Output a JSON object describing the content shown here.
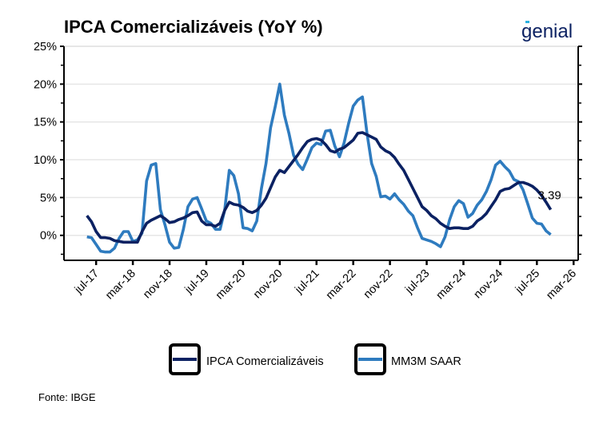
{
  "chart_data": {
    "type": "line",
    "title": "IPCA Comercializáveis (YoY %)",
    "source": "Fonte: IBGE",
    "logo_text": "genial",
    "ylim": [
      -3.3,
      25
    ],
    "xlim": [
      "2016-12",
      "2026-04"
    ],
    "grid": "horizontal",
    "legend_placement": "bottom",
    "yticks": [
      0,
      5,
      10,
      15,
      20,
      25
    ],
    "ytick_labels": [
      "0%",
      "5%",
      "10%",
      "15%",
      "20%",
      "25%"
    ],
    "xticks": [
      "2017-07",
      "2018-03",
      "2018-11",
      "2019-07",
      "2020-03",
      "2020-11",
      "2021-07",
      "2022-03",
      "2022-11",
      "2023-07",
      "2024-03",
      "2024-11",
      "2025-07",
      "2026-03"
    ],
    "xtick_labels": [
      "jul-17",
      "mar-18",
      "nov-18",
      "jul-19",
      "mar-20",
      "nov-20",
      "jul-21",
      "mar-22",
      "nov-22",
      "jul-23",
      "mar-24",
      "nov-24",
      "jul-25",
      "mar-26"
    ],
    "x": [
      "2017-05",
      "2017-06",
      "2017-07",
      "2017-08",
      "2017-09",
      "2017-10",
      "2017-11",
      "2017-12",
      "2018-01",
      "2018-02",
      "2018-03",
      "2018-04",
      "2018-05",
      "2018-06",
      "2018-07",
      "2018-08",
      "2018-09",
      "2018-10",
      "2018-11",
      "2018-12",
      "2019-01",
      "2019-02",
      "2019-03",
      "2019-04",
      "2019-05",
      "2019-06",
      "2019-07",
      "2019-08",
      "2019-09",
      "2019-10",
      "2019-11",
      "2019-12",
      "2020-01",
      "2020-02",
      "2020-03",
      "2020-04",
      "2020-05",
      "2020-06",
      "2020-07",
      "2020-08",
      "2020-09",
      "2020-10",
      "2020-11",
      "2020-12",
      "2021-01",
      "2021-02",
      "2021-03",
      "2021-04",
      "2021-05",
      "2021-06",
      "2021-07",
      "2021-08",
      "2021-09",
      "2021-10",
      "2021-11",
      "2021-12",
      "2022-01",
      "2022-02",
      "2022-03",
      "2022-04",
      "2022-05",
      "2022-06",
      "2022-07",
      "2022-08",
      "2022-09",
      "2022-10",
      "2022-11",
      "2022-12",
      "2023-01",
      "2023-02",
      "2023-03",
      "2023-04",
      "2023-05",
      "2023-06",
      "2023-07",
      "2023-08",
      "2023-09",
      "2023-10",
      "2023-11",
      "2023-12",
      "2024-01",
      "2024-02",
      "2024-03",
      "2024-04",
      "2024-05",
      "2024-06",
      "2024-07",
      "2024-08",
      "2024-09",
      "2024-10",
      "2024-11",
      "2024-12",
      "2025-01",
      "2025-02",
      "2025-03",
      "2025-04",
      "2025-05",
      "2025-06",
      "2025-07",
      "2025-08",
      "2025-09",
      "2025-10"
    ],
    "series": [
      {
        "name": "IPCA Comercializáveis",
        "color": "#0b2162",
        "values": [
          2.6,
          1.8,
          0.5,
          -0.3,
          -0.3,
          -0.4,
          -0.7,
          -0.8,
          -0.9,
          -0.9,
          -0.9,
          -0.9,
          0.5,
          1.6,
          2.0,
          2.3,
          2.6,
          2.2,
          1.7,
          1.8,
          2.1,
          2.3,
          2.6,
          3.0,
          3.1,
          1.9,
          1.4,
          1.4,
          1.2,
          1.6,
          3.3,
          4.4,
          4.1,
          4.0,
          3.7,
          3.2,
          3.0,
          3.3,
          4.0,
          4.9,
          6.3,
          7.7,
          8.6,
          8.3,
          9.1,
          9.9,
          10.7,
          11.6,
          12.4,
          12.7,
          12.8,
          12.6,
          12.0,
          11.2,
          11.0,
          11.4,
          11.6,
          12.1,
          12.6,
          13.5,
          13.6,
          13.3,
          13.0,
          12.7,
          11.7,
          11.2,
          10.9,
          10.3,
          9.4,
          8.6,
          7.4,
          6.2,
          5.0,
          3.8,
          3.3,
          2.6,
          2.2,
          1.6,
          1.2,
          0.9,
          1.0,
          1.0,
          0.9,
          0.9,
          1.2,
          1.9,
          2.3,
          2.9,
          3.8,
          4.7,
          5.8,
          6.1,
          6.2,
          6.6,
          7.0,
          7.0,
          6.8,
          6.5,
          6.0,
          5.3,
          4.4,
          3.39
        ]
      },
      {
        "name": "MM3M SAAR",
        "color": "#2e7bbf",
        "values": [
          -0.2,
          -0.3,
          -1.2,
          -2.1,
          -2.2,
          -2.2,
          -1.7,
          -0.4,
          0.5,
          0.5,
          -0.8,
          -0.6,
          0.3,
          7.2,
          9.3,
          9.5,
          3.4,
          1.4,
          -0.9,
          -1.7,
          -1.6,
          0.8,
          3.8,
          4.8,
          5.0,
          3.5,
          1.9,
          1.6,
          0.8,
          0.8,
          3.3,
          8.6,
          7.9,
          5.5,
          1.0,
          0.9,
          0.6,
          1.9,
          6.2,
          9.5,
          14.2,
          17.0,
          20.0,
          15.9,
          13.5,
          10.6,
          9.4,
          8.7,
          10.1,
          11.6,
          12.2,
          12.0,
          13.8,
          13.9,
          11.8,
          10.4,
          12.2,
          14.8,
          17.1,
          17.9,
          18.3,
          13.5,
          9.5,
          7.8,
          5.1,
          5.2,
          4.8,
          5.5,
          4.7,
          4.1,
          3.2,
          2.6,
          1.0,
          -0.4,
          -0.6,
          -0.8,
          -1.1,
          -1.5,
          -0.2,
          2.1,
          3.8,
          4.6,
          4.2,
          2.4,
          2.9,
          4.0,
          4.7,
          5.8,
          7.3,
          9.3,
          9.8,
          9.1,
          8.5,
          7.4,
          7.1,
          6.0,
          4.2,
          2.3,
          1.6,
          1.5,
          0.6,
          0.1
        ]
      }
    ],
    "annotations": [
      {
        "text": "3.39",
        "x": "2025-10",
        "y": 3.39
      }
    ]
  }
}
